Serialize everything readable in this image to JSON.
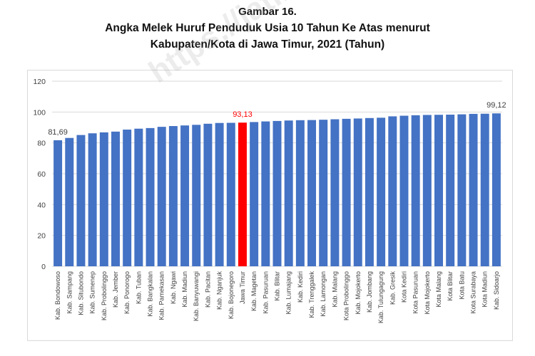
{
  "figure": {
    "number_label": "Gambar 16.",
    "title_line1": "Angka Melek Huruf Penduduk Usia 10 Tahun Ke Atas menurut",
    "title_line2": "Kabupaten/Kota di Jawa Timur, 2021 (Tahun)"
  },
  "watermark": {
    "text": "https://jatim.bps"
  },
  "chart_data": {
    "type": "bar",
    "title": "Angka Melek Huruf Penduduk Usia 10 Tahun Ke Atas menurut Kabupaten/Kota di Jawa Timur, 2021 (Tahun)",
    "xlabel": "",
    "ylabel": "",
    "ylim": [
      0,
      120
    ],
    "yticks": [
      0,
      20,
      40,
      60,
      80,
      100,
      120
    ],
    "grid": true,
    "legend": "none",
    "colors": {
      "bar": "#4472c4",
      "highlight": "#ff0000",
      "highlight_label": "#ff0000",
      "label": "#404040",
      "grid": "#d9d9d9"
    },
    "highlight_category": "Jawa Timur",
    "categories": [
      "Kab. Bondowoso",
      "Kab. Sampang",
      "Kab. Situbondo",
      "Kab. Sumenep",
      "Kab. Probolinggo",
      "Kab. Jember",
      "Kab. Ponorogo",
      "Kab. Tuban",
      "Kab. Bangkalan",
      "Kab. Pamekasan",
      "Kab. Ngawi",
      "Kab. Madiun",
      "Kab. Banyuwangi",
      "Kab. Pacitan",
      "Kab. Nganjuk",
      "Kab. Bojonegoro",
      "Jawa Timur",
      "Kab. Magetan",
      "Kab. Pasuruan",
      "Kab. Blitar",
      "Kab. Lumajang",
      "Kab. Kediri",
      "Kab. Trenggalek",
      "Kab. Lamongan",
      "Kab. Malang",
      "Kota Probolinggo",
      "Kab. Mojokerto",
      "Kab. Jombang",
      "Kab. Tulungagung",
      "Kab. Gresik",
      "Kota Kediri",
      "Kota Pasuruan",
      "Kota Mojokerto",
      "Kota Malang",
      "Kota Blitar",
      "Kota Batu",
      "Kota Surabaya",
      "Kota Madiun",
      "Kab. Sidoarjo"
    ],
    "values": [
      81.69,
      83.2,
      85.1,
      86.2,
      86.8,
      87.3,
      88.6,
      89.2,
      89.6,
      90.4,
      90.9,
      91.3,
      91.7,
      92.4,
      92.9,
      93.0,
      93.13,
      93.5,
      93.9,
      94.2,
      94.5,
      94.7,
      94.8,
      95.0,
      95.3,
      95.6,
      95.8,
      96.1,
      96.3,
      97.2,
      97.6,
      97.9,
      98.1,
      98.2,
      98.3,
      98.5,
      98.8,
      98.9,
      99.12
    ],
    "data_labels": [
      {
        "index": 0,
        "text": "81,69"
      },
      {
        "index": 16,
        "text": "93,13"
      },
      {
        "index": 38,
        "text": "99,12"
      }
    ]
  }
}
